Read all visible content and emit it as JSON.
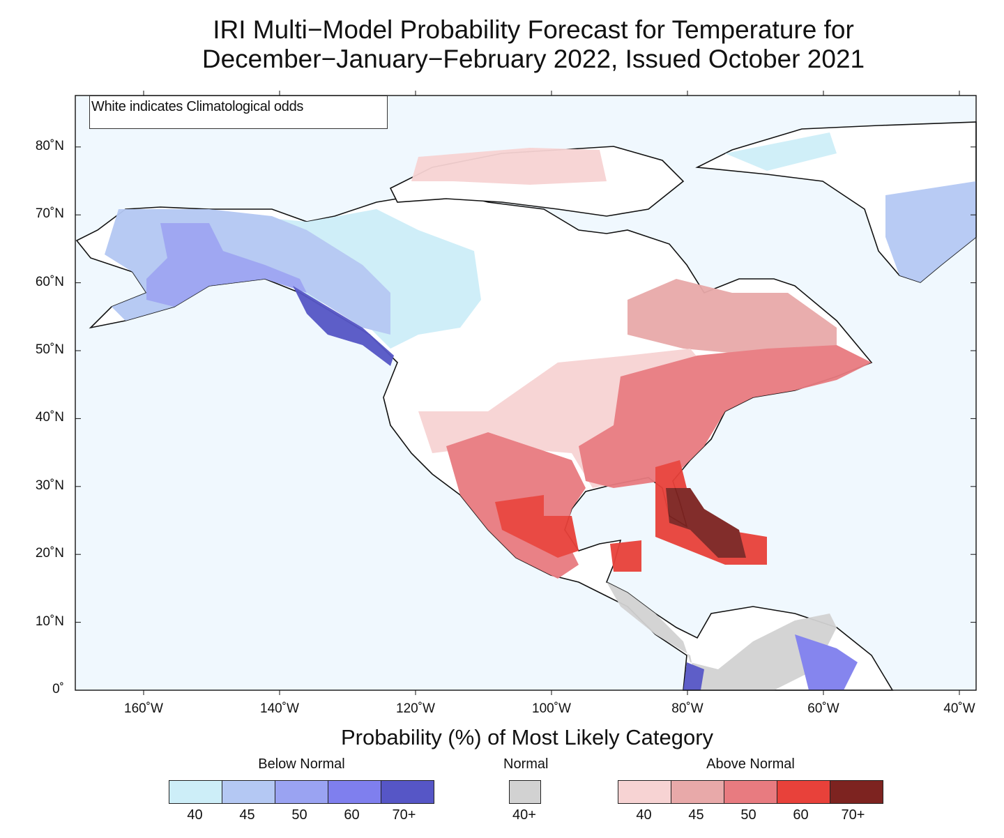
{
  "title": {
    "line1": "IRI Multi−Model Probability Forecast for Temperature for",
    "line2": "December−January−February 2022, Issued October 2021"
  },
  "note": "White indicates Climatological odds",
  "lat_labels": [
    {
      "deg": 80,
      "label": "80˚N"
    },
    {
      "deg": 70,
      "label": "70˚N"
    },
    {
      "deg": 60,
      "label": "60˚N"
    },
    {
      "deg": 50,
      "label": "50˚N"
    },
    {
      "deg": 40,
      "label": "40˚N"
    },
    {
      "deg": 30,
      "label": "30˚N"
    },
    {
      "deg": 20,
      "label": "20˚N"
    },
    {
      "deg": 10,
      "label": "10˚N"
    },
    {
      "deg": 0,
      "label": "0˚"
    }
  ],
  "lon_labels": [
    {
      "deg": -160,
      "label": "160˚W"
    },
    {
      "deg": -140,
      "label": "140˚W"
    },
    {
      "deg": -120,
      "label": "120˚W"
    },
    {
      "deg": -100,
      "label": "100˚W"
    },
    {
      "deg": -80,
      "label": "80˚W"
    },
    {
      "deg": -60,
      "label": "60˚W"
    },
    {
      "deg": -40,
      "label": "40˚W"
    }
  ],
  "colorbar_title": "Probability (%) of Most Likely Category",
  "legend": {
    "below": {
      "label": "Below Normal",
      "ticks": [
        "40",
        "45",
        "50",
        "60",
        "70+"
      ],
      "colors": [
        "#cdeef8",
        "#b4c8f3",
        "#9aa3f2",
        "#7f7fee",
        "#5656c6"
      ]
    },
    "normal": {
      "label": "Normal",
      "ticks": [
        "40+"
      ],
      "colors": [
        "#d2d2d2"
      ]
    },
    "above": {
      "label": "Above Normal",
      "ticks": [
        "40",
        "45",
        "50",
        "60",
        "70+"
      ],
      "colors": [
        "#f7d3d3",
        "#e8a9a9",
        "#e87b80",
        "#e8413a",
        "#7d2320"
      ]
    }
  },
  "colors": {
    "ocean": "#f0f8fe",
    "land": "#ffffff"
  }
}
